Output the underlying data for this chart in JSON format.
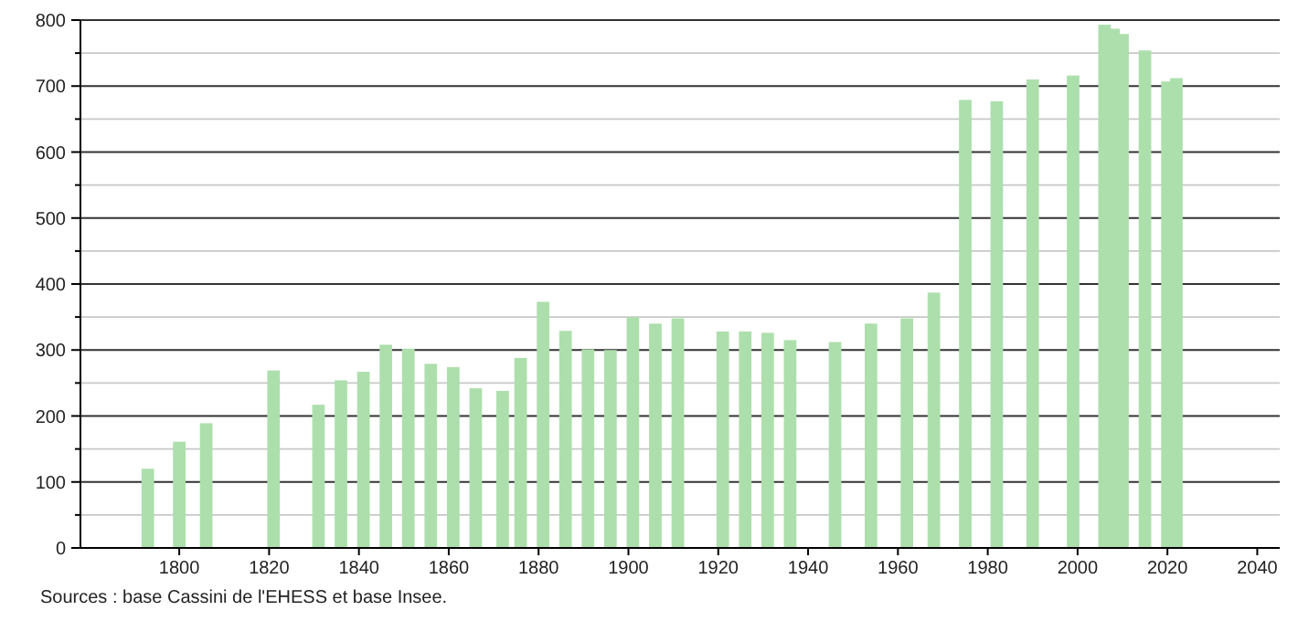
{
  "chart_data": {
    "type": "bar",
    "color": "#addfad",
    "x": [
      1793,
      1800,
      1806,
      1821,
      1831,
      1836,
      1841,
      1846,
      1851,
      1856,
      1861,
      1866,
      1872,
      1876,
      1881,
      1886,
      1891,
      1896,
      1901,
      1906,
      1911,
      1921,
      1926,
      1931,
      1936,
      1946,
      1954,
      1962,
      1968,
      1975,
      1982,
      1990,
      1999,
      2006,
      2008,
      2010,
      2015,
      2020,
      2022
    ],
    "values": [
      120,
      161,
      189,
      269,
      217,
      254,
      267,
      308,
      302,
      279,
      274,
      242,
      238,
      288,
      373,
      329,
      301,
      300,
      350,
      340,
      348,
      328,
      328,
      326,
      315,
      312,
      340,
      348,
      387,
      679,
      677,
      710,
      716,
      793,
      787,
      779,
      754,
      707,
      712
    ],
    "xlim": [
      1778,
      2045
    ],
    "xticks": [
      1800,
      1820,
      1840,
      1860,
      1880,
      1900,
      1920,
      1940,
      1960,
      1980,
      2000,
      2020,
      2040
    ],
    "ylim": [
      0,
      800
    ],
    "yticks": [
      0,
      {
        "value": 50,
        "label": null
      },
      100,
      {
        "value": 150,
        "label": null
      },
      200,
      {
        "value": 250,
        "label": null
      },
      300,
      {
        "value": 350,
        "label": null
      },
      400,
      {
        "value": 450,
        "label": null
      },
      500,
      {
        "value": 550,
        "label": null
      },
      600,
      {
        "value": 650,
        "label": null
      },
      700,
      {
        "value": 750,
        "label": null
      },
      800
    ],
    "grid": "y",
    "annotations": [
      "Sources : base Cassini de l'EHESS et base Insee."
    ]
  }
}
